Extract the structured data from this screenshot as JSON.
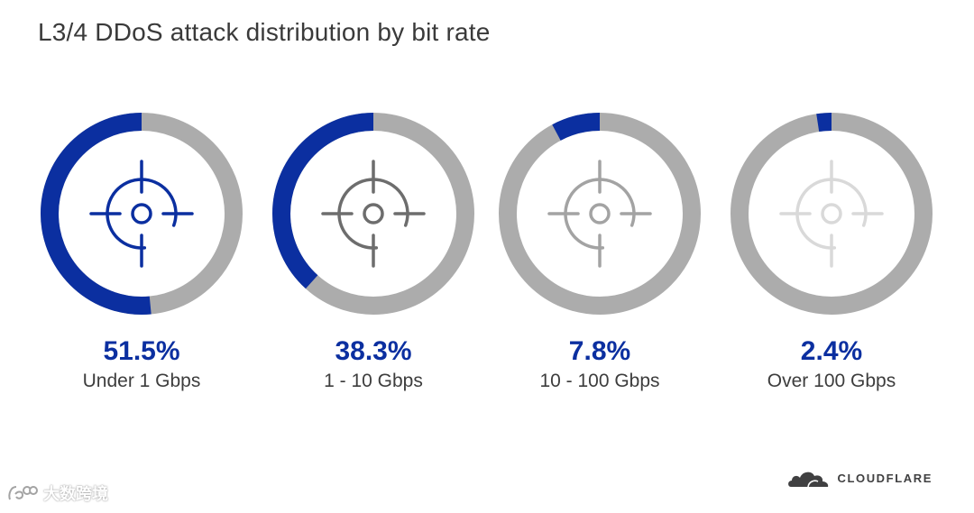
{
  "title": "L3/4 DDoS attack distribution by bit rate",
  "colors": {
    "accent": "#0b2fa0",
    "track": "#acacac",
    "icon_shades": [
      "#0b2fa0",
      "#6d6d6d",
      "#a3a3a3",
      "#d9d9d9"
    ]
  },
  "chart_data": {
    "type": "pie",
    "title": "L3/4 DDoS attack distribution by bit rate",
    "categories": [
      "Under 1 Gbps",
      "1 - 10 Gbps",
      "10 - 100 Gbps",
      "Over 100 Gbps"
    ],
    "values": [
      51.5,
      38.3,
      7.8,
      2.4
    ],
    "unit": "%",
    "value_labels": [
      "51.5%",
      "38.3%",
      "7.8%",
      "2.4%"
    ],
    "icon": "crosshair-target-icon"
  },
  "brand": {
    "name": "CLOUDFLARE",
    "icon": "cloud-logo-icon"
  },
  "watermark": {
    "text": "大数跨境"
  }
}
